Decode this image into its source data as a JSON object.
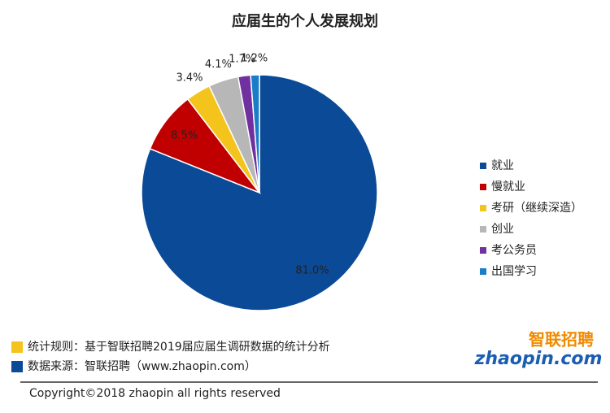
{
  "chart_data": {
    "type": "pie",
    "title": "应届生的个人发展规划",
    "categories": [
      "就业",
      "慢就业",
      "考研（继续深造）",
      "创业",
      "考公务员",
      "出国学习"
    ],
    "values": [
      81.0,
      8.5,
      3.4,
      4.1,
      1.7,
      1.2
    ],
    "value_labels": [
      "81.0%",
      "8.5%",
      "3.4%",
      "4.1%",
      "1.7%",
      "1.2%"
    ],
    "colors": [
      "#0b4a96",
      "#c00000",
      "#f4c41c",
      "#b7b7b7",
      "#7030a0",
      "#1b7cc8"
    ],
    "legend": "right"
  },
  "notes": [
    {
      "label": "统计规则：基于智联招聘2019届应届生调研数据的统计分析",
      "color": "#f4c41c"
    },
    {
      "label": "数据来源：智联招聘（www.zhaopin.com）",
      "color": "#0b4a96"
    }
  ],
  "logo": {
    "brand": "智联招聘",
    "domain": "zhaopin.com"
  },
  "copyright": "Copyright©2018 zhaopin all rights reserved"
}
